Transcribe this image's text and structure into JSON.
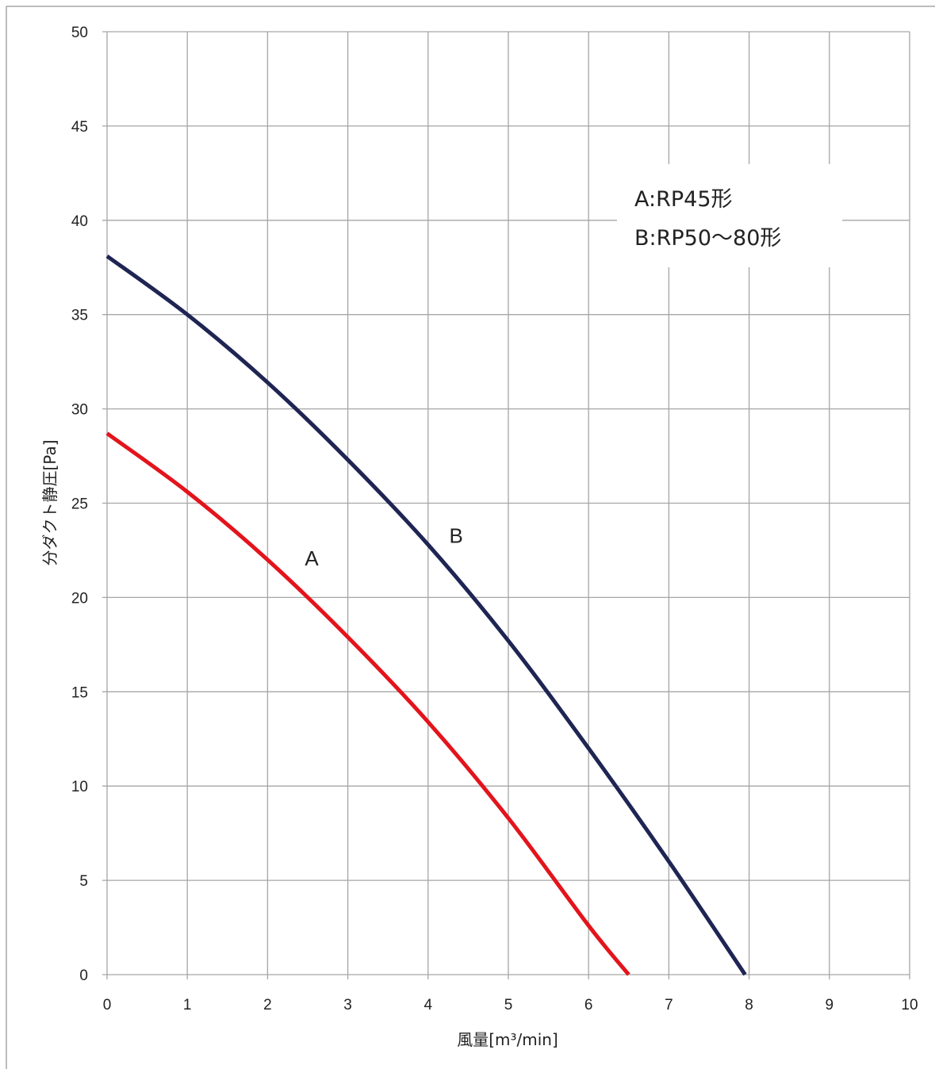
{
  "chart_data": {
    "type": "line",
    "xlabel": "風量[m³/min]",
    "ylabel": "分ダクト静圧[Pa]",
    "xlim": [
      0,
      10
    ],
    "ylim": [
      0,
      50
    ],
    "x_ticks": [
      "0",
      "1",
      "2",
      "3",
      "4",
      "5",
      "6",
      "7",
      "8",
      "9",
      "10"
    ],
    "y_ticks": [
      "0",
      "5",
      "10",
      "15",
      "20",
      "25",
      "30",
      "35",
      "40",
      "45",
      "50"
    ],
    "grid": true,
    "legend": {
      "placement": "top-right",
      "entries": [
        "A:RP45形",
        "B:RP50〜80形"
      ]
    },
    "colors": {
      "A": "#e3141c",
      "B": "#1f2553",
      "grid": "#a6a6a6",
      "frame": "#a6a6a6"
    },
    "series": [
      {
        "name": "A",
        "color": "#e3141c",
        "x": [
          0,
          1,
          2,
          3,
          4,
          5,
          6,
          6.5
        ],
        "y": [
          28.7,
          25.6,
          22.0,
          17.9,
          13.4,
          8.3,
          2.6,
          0
        ]
      },
      {
        "name": "B",
        "color": "#1f2553",
        "x": [
          0,
          1,
          2,
          3,
          4,
          5,
          6,
          7,
          7.95
        ],
        "y": [
          38.1,
          35.0,
          31.4,
          27.3,
          22.8,
          17.7,
          12.0,
          6.0,
          0
        ]
      }
    ],
    "annotations": [
      {
        "text": "A",
        "x": 2.55,
        "y": 21.7
      },
      {
        "text": "B",
        "x": 4.35,
        "y": 22.9
      }
    ]
  }
}
